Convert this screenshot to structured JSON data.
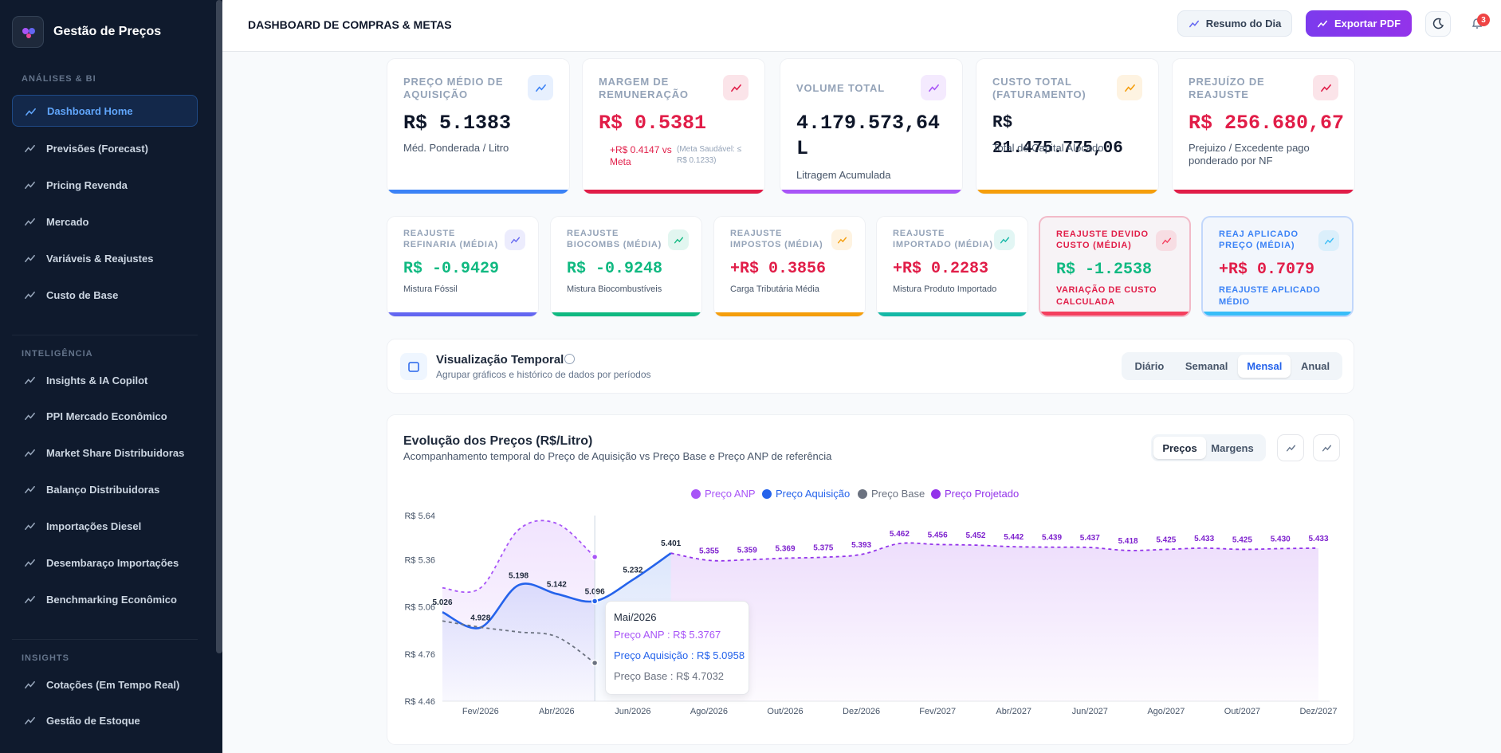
{
  "sidebar": {
    "brand": "Gestão de Preços",
    "sections": [
      {
        "title": "ANÁLISES & BI",
        "items": [
          {
            "label": "Dashboard Home",
            "active": true
          },
          {
            "label": "Previsões (Forecast)"
          },
          {
            "label": "Pricing Revenda"
          },
          {
            "label": "Mercado"
          },
          {
            "label": "Variáveis & Reajustes"
          },
          {
            "label": "Custo de Base"
          }
        ]
      },
      {
        "title": "INTELIGÊNCIA",
        "items": [
          {
            "label": "Insights & IA Copilot"
          },
          {
            "label": "PPI Mercado Econômico"
          },
          {
            "label": "Market Share Distribuidoras"
          },
          {
            "label": "Balanço Distribuidoras"
          },
          {
            "label": "Importações Diesel"
          },
          {
            "label": "Desembaraço Importações"
          },
          {
            "label": "Benchmarking Econômico"
          }
        ]
      },
      {
        "title": "INSIGHTS",
        "items": [
          {
            "label": "Cotações (Em Tempo Real)"
          },
          {
            "label": "Gestão de Estoque"
          }
        ]
      }
    ]
  },
  "header": {
    "title": "DASHBOARD DE COMPRAS & METAS",
    "summary_button": "Resumo do Dia",
    "export_button": "Exportar PDF",
    "notifications": 3
  },
  "kpis": [
    {
      "label": "PREÇO MÉDIO DE AQUISIÇÃO",
      "value": "R$ 5.1383",
      "note": "Méd. Ponderada / Litro",
      "color": "#3b82f6",
      "value_color": "#0f172a"
    },
    {
      "label": "MARGEM DE REMUNERAÇÃO",
      "value": "R$ 0.5381",
      "note": "+R$ 0.4147 vs Meta",
      "note_secondary": "(Meta Saudável: ≤ R$ 0.1233)",
      "color": "#e11d48",
      "value_color": "#e11d48"
    },
    {
      "label": "VOLUME TOTAL",
      "value": "4.179.573,64 L",
      "note": "Litragem Acumulada",
      "color": "#a855f7",
      "value_color": "#0f172a"
    },
    {
      "label": "CUSTO TOTAL (FATURAMENTO)",
      "value": "R$ 21.475.775,06",
      "note": "Total de Capital Alocado",
      "color": "#f59e0b",
      "value_color": "#0f172a"
    },
    {
      "label": "PREJUÍZO DE REAJUSTE",
      "value": "R$ 256.680,67",
      "note": "Prejuizo / Excedente pago ponderado por NF",
      "color": "#e11d48",
      "value_color": "#e11d48"
    }
  ],
  "kpis_secondary": [
    {
      "label": "REAJUSTE REFINARIA (MÉDIA)",
      "value": "R$ -0.9429",
      "note": "Mistura Fóssil",
      "color": "#6366f1",
      "value_color": "#10b981"
    },
    {
      "label": "REAJUSTE BIOCOMBS (MÉDIA)",
      "value": "R$ -0.9248",
      "note": "Mistura Biocombustíveis",
      "color": "#10b981",
      "value_color": "#10b981"
    },
    {
      "label": "REAJUSTE IMPOSTOS (MÉDIA)",
      "value": "+R$ 0.3856",
      "note": "Carga Tributária Média",
      "color": "#f59e0b",
      "value_color": "#e11d48"
    },
    {
      "label": "REAJUSTE IMPORTADO (MÉDIA)",
      "value": "+R$ 0.2283",
      "note": "Mistura Produto Importado",
      "color": "#14b8a6",
      "value_color": "#e11d48"
    },
    {
      "label": "REAJUSTE DEVIDO CUSTO (MÉDIA)",
      "value": "R$ -1.2538",
      "note": "VARIAÇÃO DE CUSTO CALCULADA",
      "color": "#f43f5e",
      "value_color": "#10b981",
      "highlight": "#e11d48"
    },
    {
      "label": "REAJ APLICADO PREÇO (MÉDIA)",
      "value": "+R$ 0.7079",
      "note": "REAJUSTE APLICADO MÉDIO",
      "color": "#38bdf8",
      "value_color": "#e11d48",
      "highlight": "#3b82f6"
    }
  ],
  "temporal": {
    "title": "Visualização Temporal",
    "subtitle": "Agrupar gráficos e histórico de dados por períodos",
    "options": [
      {
        "label": "Diário"
      },
      {
        "label": "Semanal"
      },
      {
        "label": "Mensal",
        "selected": true
      },
      {
        "label": "Anual"
      }
    ]
  },
  "chart_card": {
    "title": "Evolução dos Preços (R$/Litro)",
    "subtitle": "Acompanhamento temporal do Preço de Aquisição vs Preço Base e Preço ANP de referência",
    "tabs": [
      {
        "label": "Preços",
        "selected": true
      },
      {
        "label": "Margens"
      }
    ]
  },
  "chart_data": {
    "type": "line",
    "categories": [
      null,
      "Fev/2026",
      null,
      "Abr/2026",
      null,
      "Jun/2026",
      null,
      "Ago/2026",
      null,
      "Out/2026",
      null,
      "Dez/2026",
      null,
      "Fev/2027",
      null,
      "Abr/2027",
      null,
      "Jun/2027",
      null,
      "Ago/2027",
      null,
      "Out/2027",
      null,
      "Dez/2027"
    ],
    "ylim": [
      4.46,
      5.64
    ],
    "yticks": [
      {
        "value": 4.46,
        "label": "R$ 4.46"
      },
      {
        "value": 4.76,
        "label": "R$ 4.76"
      },
      {
        "value": 5.06,
        "label": "R$ 5.06"
      },
      {
        "value": 5.36,
        "label": "R$ 5.36"
      },
      {
        "value": 5.64,
        "label": "R$ 5.64"
      }
    ],
    "grid": false,
    "legend": "top",
    "series": [
      {
        "name": "Preço ANP",
        "color": "#a855f7",
        "dashed": true,
        "area": true,
        "values": [
          5.18,
          5.18,
          5.55,
          5.59,
          5.3767,
          null,
          null,
          null,
          null,
          null,
          null,
          null,
          null,
          null,
          null,
          null,
          null,
          null,
          null,
          null,
          null,
          null,
          null,
          null
        ]
      },
      {
        "name": "Preço Aquisição",
        "color": "#2563eb",
        "dashed": false,
        "area": true,
        "values": [
          5.026,
          4.928,
          5.198,
          5.142,
          5.096,
          5.232,
          5.401,
          null,
          null,
          null,
          null,
          null,
          null,
          null,
          null,
          null,
          null,
          null,
          null,
          null,
          null,
          null,
          null,
          null
        ],
        "value_labels": [
          "5.026",
          "4.928",
          "5.198",
          "5.142",
          "5.096",
          "5.232",
          "5.401",
          null,
          null,
          null,
          null,
          null,
          null,
          null,
          null,
          null,
          null,
          null,
          null,
          null,
          null,
          null,
          null,
          null
        ]
      },
      {
        "name": "Preço Base",
        "color": "#6b7280",
        "dashed": true,
        "area": false,
        "values": [
          4.97,
          4.93,
          4.9,
          4.87,
          4.7032,
          null,
          null,
          null,
          null,
          null,
          null,
          null,
          null,
          null,
          null,
          null,
          null,
          null,
          null,
          null,
          null,
          null,
          null,
          null
        ]
      },
      {
        "name": "Preço Projetado",
        "color": "#9333ea",
        "dashed": true,
        "area": true,
        "values": [
          null,
          null,
          null,
          null,
          null,
          null,
          5.401,
          5.355,
          5.359,
          5.369,
          5.375,
          5.393,
          5.462,
          5.456,
          5.452,
          5.442,
          5.439,
          5.437,
          5.418,
          5.425,
          5.433,
          5.425,
          5.43,
          5.433
        ],
        "value_labels": [
          null,
          null,
          null,
          null,
          null,
          null,
          null,
          "5.355",
          "5.359",
          "5.369",
          "5.375",
          "5.393",
          "5.462",
          "5.456",
          "5.452",
          "5.442",
          "5.439",
          "5.437",
          "5.418",
          "5.425",
          "5.433",
          "5.425",
          "5.430",
          "5.433"
        ]
      }
    ],
    "tooltip": {
      "index": 4,
      "title": "Mai/2026",
      "items": [
        "Preço ANP : R$ 5.3767",
        "Preço Aquisição : R$ 5.0958",
        "Preço Base : R$ 4.7032"
      ]
    }
  }
}
